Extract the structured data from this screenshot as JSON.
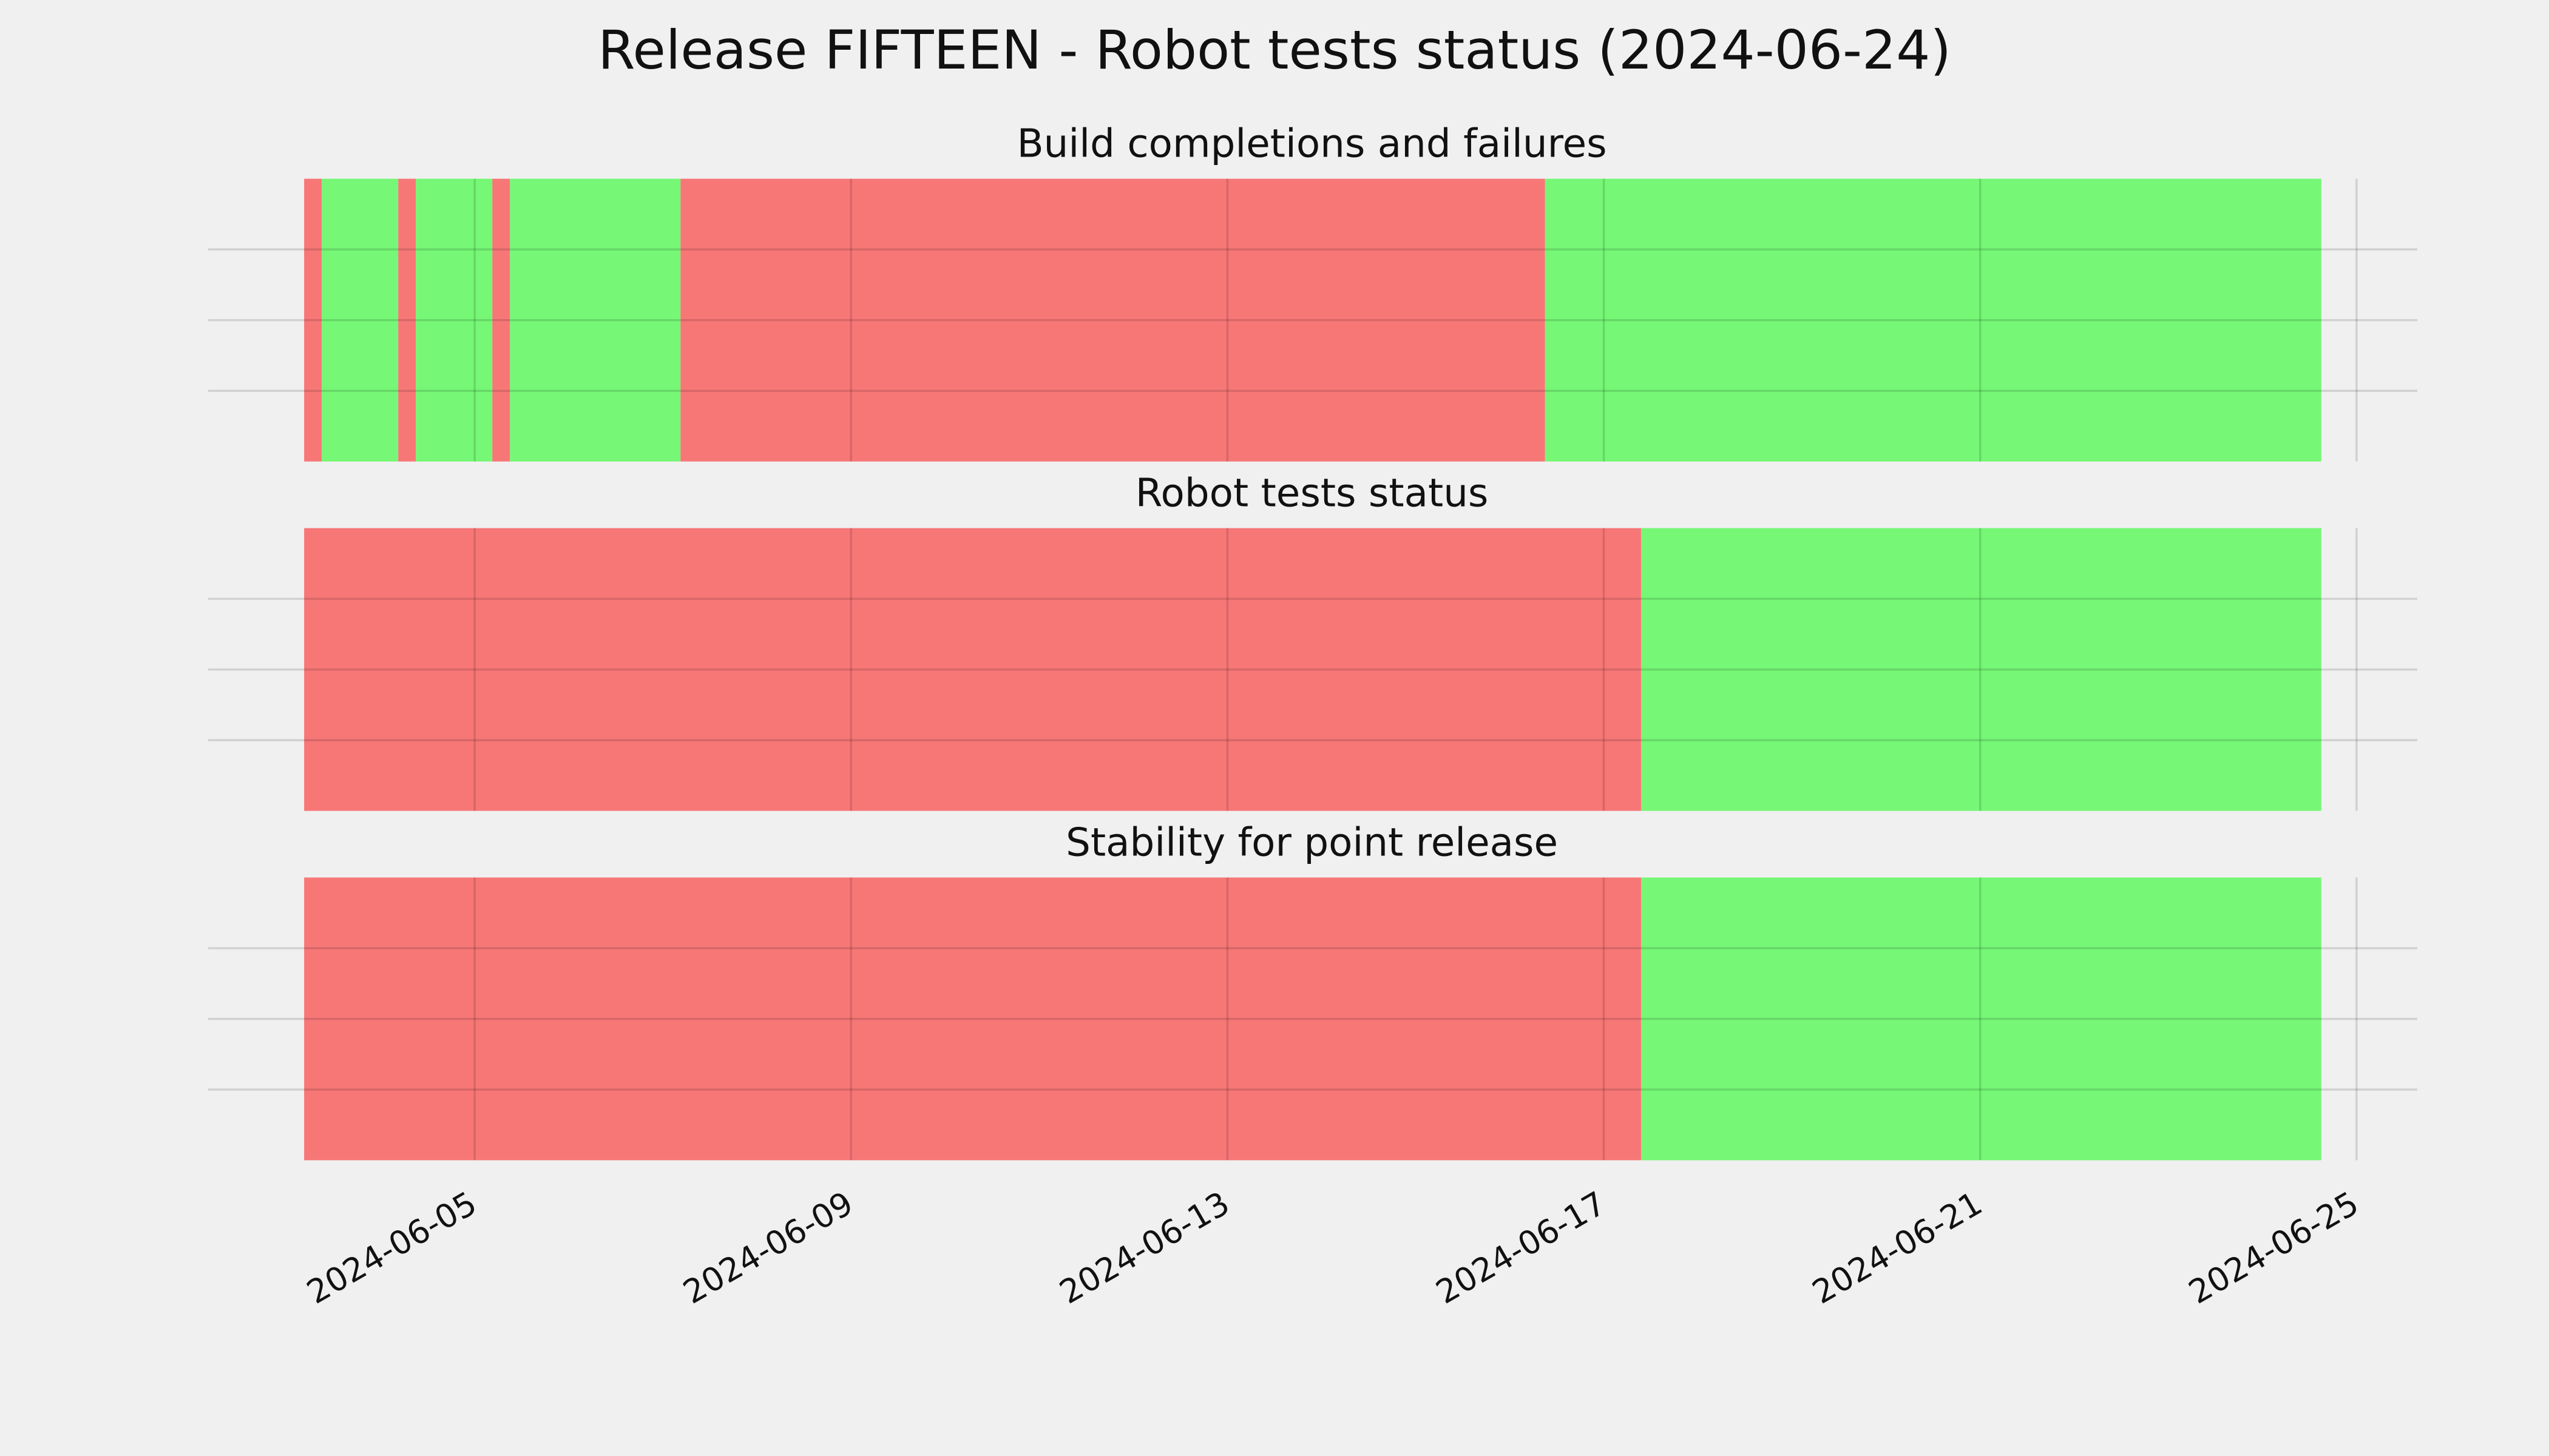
{
  "chart_data": [
    {
      "type": "timeline",
      "suptitle": "Release FIFTEEN - Robot tests status (2024-06-24)",
      "title": "Build completions and failures",
      "spans": [
        {
          "start": "2024-06-03T04:30",
          "end": "2024-06-03T09:00",
          "color": "#f77777"
        },
        {
          "start": "2024-06-03T09:00",
          "end": "2024-06-04T04:30",
          "color": "#76f776"
        },
        {
          "start": "2024-06-04T04:30",
          "end": "2024-06-04T09:00",
          "color": "#f77777"
        },
        {
          "start": "2024-06-04T09:00",
          "end": "2024-06-05T04:30",
          "color": "#76f776"
        },
        {
          "start": "2024-06-05T04:30",
          "end": "2024-06-05T09:00",
          "color": "#f77777"
        },
        {
          "start": "2024-06-05T09:00",
          "end": "2024-06-07T04:30",
          "color": "#76f776"
        },
        {
          "start": "2024-06-07T04:30",
          "end": "2024-06-16T09:00",
          "color": "#f77777"
        },
        {
          "start": "2024-06-16T09:00",
          "end": "2024-06-24T15:00",
          "color": "#76f776"
        }
      ],
      "xlim": [
        "2024-06-02T04:00",
        "2024-06-25T15:30"
      ],
      "ylim": [
        0,
        1
      ],
      "yticks": [
        0.25,
        0.5,
        0.75
      ],
      "grid": true
    },
    {
      "type": "timeline",
      "title": "Robot tests status",
      "spans": [
        {
          "start": "2024-06-03T04:30",
          "end": "2024-06-17T09:30",
          "color": "#f77777"
        },
        {
          "start": "2024-06-17T09:30",
          "end": "2024-06-24T15:00",
          "color": "#76f776"
        }
      ],
      "xlim": [
        "2024-06-02T04:00",
        "2024-06-25T15:30"
      ],
      "ylim": [
        0,
        1
      ],
      "yticks": [
        0.25,
        0.5,
        0.75
      ],
      "grid": true
    },
    {
      "type": "timeline",
      "title": "Stability for point release",
      "spans": [
        {
          "start": "2024-06-03T04:30",
          "end": "2024-06-17T09:30",
          "color": "#f77777"
        },
        {
          "start": "2024-06-17T09:30",
          "end": "2024-06-24T15:00",
          "color": "#76f776"
        }
      ],
      "xlim": [
        "2024-06-02T04:00",
        "2024-06-25T15:30"
      ],
      "ylim": [
        0,
        1
      ],
      "yticks": [
        0.25,
        0.5,
        0.75
      ],
      "grid": true,
      "xticks": [
        "2024-06-05",
        "2024-06-09",
        "2024-06-13",
        "2024-06-17",
        "2024-06-21",
        "2024-06-25"
      ]
    }
  ]
}
